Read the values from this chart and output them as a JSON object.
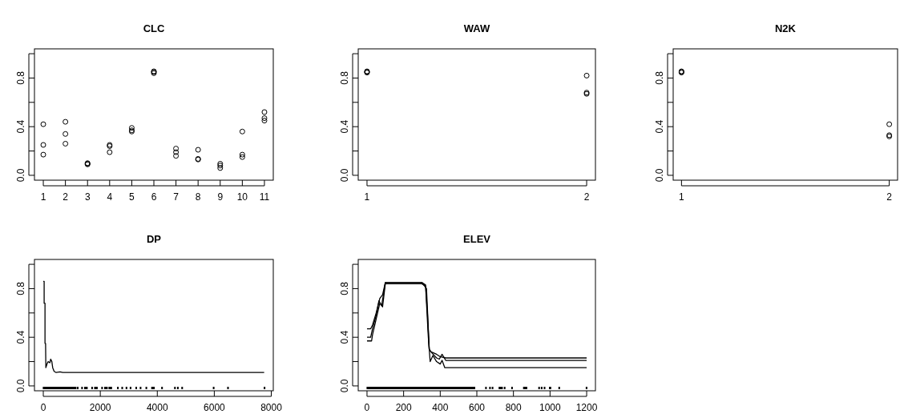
{
  "chart_data": [
    {
      "type": "scatter",
      "title": "CLC",
      "marker": "circle",
      "color": "#000000",
      "x": [
        1,
        1,
        1,
        2,
        2,
        2,
        3,
        3,
        3,
        4,
        4,
        4,
        5,
        5,
        5,
        6,
        6,
        6,
        7,
        7,
        7,
        8,
        8,
        8,
        9,
        9,
        9,
        10,
        10,
        10,
        11,
        11,
        11
      ],
      "values": [
        0.42,
        0.25,
        0.17,
        0.44,
        0.34,
        0.26,
        0.1,
        0.095,
        0.09,
        0.25,
        0.24,
        0.19,
        0.39,
        0.37,
        0.36,
        0.855,
        0.85,
        0.84,
        0.22,
        0.19,
        0.16,
        0.21,
        0.135,
        0.13,
        0.095,
        0.08,
        0.06,
        0.36,
        0.17,
        0.15,
        0.52,
        0.47,
        0.45
      ],
      "xlim": [
        0.6,
        11.4
      ],
      "xticks": [
        1,
        2,
        3,
        4,
        5,
        6,
        7,
        8,
        9,
        10,
        11
      ],
      "ylim": [
        -0.04,
        1.04
      ],
      "yticks": [
        {
          "value": 0,
          "label": "0.0"
        },
        {
          "value": 0.2,
          "label": null
        },
        {
          "value": 0.4,
          "label": "0.4"
        },
        {
          "value": 0.6,
          "label": null
        },
        {
          "value": 0.8,
          "label": "0.8"
        },
        {
          "value": 1,
          "label": null
        }
      ]
    },
    {
      "type": "scatter",
      "title": "WAW",
      "marker": "circle",
      "color": "#000000",
      "x": [
        1,
        1,
        1,
        2,
        2,
        2
      ],
      "values": [
        0.855,
        0.85,
        0.845,
        0.82,
        0.68,
        0.67
      ],
      "xlim": [
        0.96,
        2.04
      ],
      "xticks": [
        1,
        2
      ],
      "ylim": [
        -0.04,
        1.04
      ],
      "yticks": [
        {
          "value": 0,
          "label": "0.0"
        },
        {
          "value": 0.2,
          "label": null
        },
        {
          "value": 0.4,
          "label": "0.4"
        },
        {
          "value": 0.6,
          "label": null
        },
        {
          "value": 0.8,
          "label": "0.8"
        },
        {
          "value": 1,
          "label": null
        }
      ]
    },
    {
      "type": "scatter",
      "title": "N2K",
      "marker": "circle",
      "color": "#000000",
      "x": [
        1,
        1,
        1,
        2,
        2,
        2
      ],
      "values": [
        0.855,
        0.85,
        0.845,
        0.42,
        0.33,
        0.32
      ],
      "xlim": [
        0.96,
        2.04
      ],
      "xticks": [
        1,
        2
      ],
      "ylim": [
        -0.04,
        1.04
      ],
      "yticks": [
        {
          "value": 0,
          "label": "0.0"
        },
        {
          "value": 0.2,
          "label": null
        },
        {
          "value": 0.4,
          "label": "0.4"
        },
        {
          "value": 0.6,
          "label": null
        },
        {
          "value": 0.8,
          "label": "0.8"
        },
        {
          "value": 1,
          "label": null
        }
      ]
    },
    {
      "type": "line",
      "title": "DP",
      "xlim": [
        -310,
        8070
      ],
      "xticks": [
        0,
        2000,
        4000,
        6000,
        8000
      ],
      "ylim": [
        -0.04,
        1.04
      ],
      "yticks": [
        {
          "value": 0,
          "label": "0.0"
        },
        {
          "value": 0.2,
          "label": null
        },
        {
          "value": 0.4,
          "label": "0.4"
        },
        {
          "value": 0.6,
          "label": null
        },
        {
          "value": 0.8,
          "label": "0.8"
        },
        {
          "value": 1,
          "label": null
        }
      ],
      "series": [
        {
          "color": "#000000",
          "x": [
            0,
            30,
            30,
            60,
            60,
            80,
            90,
            130,
            170,
            230,
            260,
            300,
            330,
            380,
            450,
            590,
            680,
            7750
          ],
          "values": [
            0.86,
            0.86,
            0.68,
            0.68,
            0.35,
            0.35,
            0.15,
            0.18,
            0.2,
            0.19,
            0.22,
            0.2,
            0.15,
            0.12,
            0.11,
            0.115,
            0.11,
            0.11
          ]
        }
      ]
    },
    {
      "type": "line",
      "title": "ELEV",
      "xlim": [
        -48,
        1248
      ],
      "xticks": [
        0,
        200,
        400,
        600,
        800,
        1000,
        1200
      ],
      "ylim": [
        -0.04,
        1.04
      ],
      "yticks": [
        {
          "value": 0,
          "label": "0.0"
        },
        {
          "value": 0.2,
          "label": null
        },
        {
          "value": 0.4,
          "label": "0.4"
        },
        {
          "value": 0.6,
          "label": null
        },
        {
          "value": 0.8,
          "label": "0.8"
        },
        {
          "value": 1,
          "label": null
        }
      ],
      "series": [
        {
          "color": "#000000",
          "x": [
            0,
            20,
            30,
            50,
            70,
            85,
            100,
            300,
            320,
            330,
            340,
            350,
            380,
            400,
            430,
            1200
          ],
          "values": [
            0.47,
            0.47,
            0.5,
            0.6,
            0.72,
            0.75,
            0.85,
            0.85,
            0.83,
            0.6,
            0.3,
            0.28,
            0.26,
            0.24,
            0.23,
            0.23
          ]
        },
        {
          "color": "#000000",
          "x": [
            0,
            20,
            30,
            50,
            65,
            80,
            95,
            100,
            300,
            325,
            340,
            355,
            380,
            395,
            410,
            430,
            1200
          ],
          "values": [
            0.4,
            0.4,
            0.47,
            0.58,
            0.7,
            0.66,
            0.8,
            0.85,
            0.85,
            0.8,
            0.3,
            0.27,
            0.23,
            0.22,
            0.26,
            0.21,
            0.21
          ]
        },
        {
          "color": "#000000",
          "x": [
            0,
            25,
            30,
            50,
            70,
            85,
            100,
            300,
            320,
            335,
            345,
            360,
            380,
            400,
            410,
            425,
            1200
          ],
          "values": [
            0.37,
            0.37,
            0.42,
            0.55,
            0.68,
            0.65,
            0.84,
            0.84,
            0.82,
            0.4,
            0.2,
            0.25,
            0.2,
            0.18,
            0.21,
            0.15,
            0.15
          ]
        }
      ]
    }
  ]
}
